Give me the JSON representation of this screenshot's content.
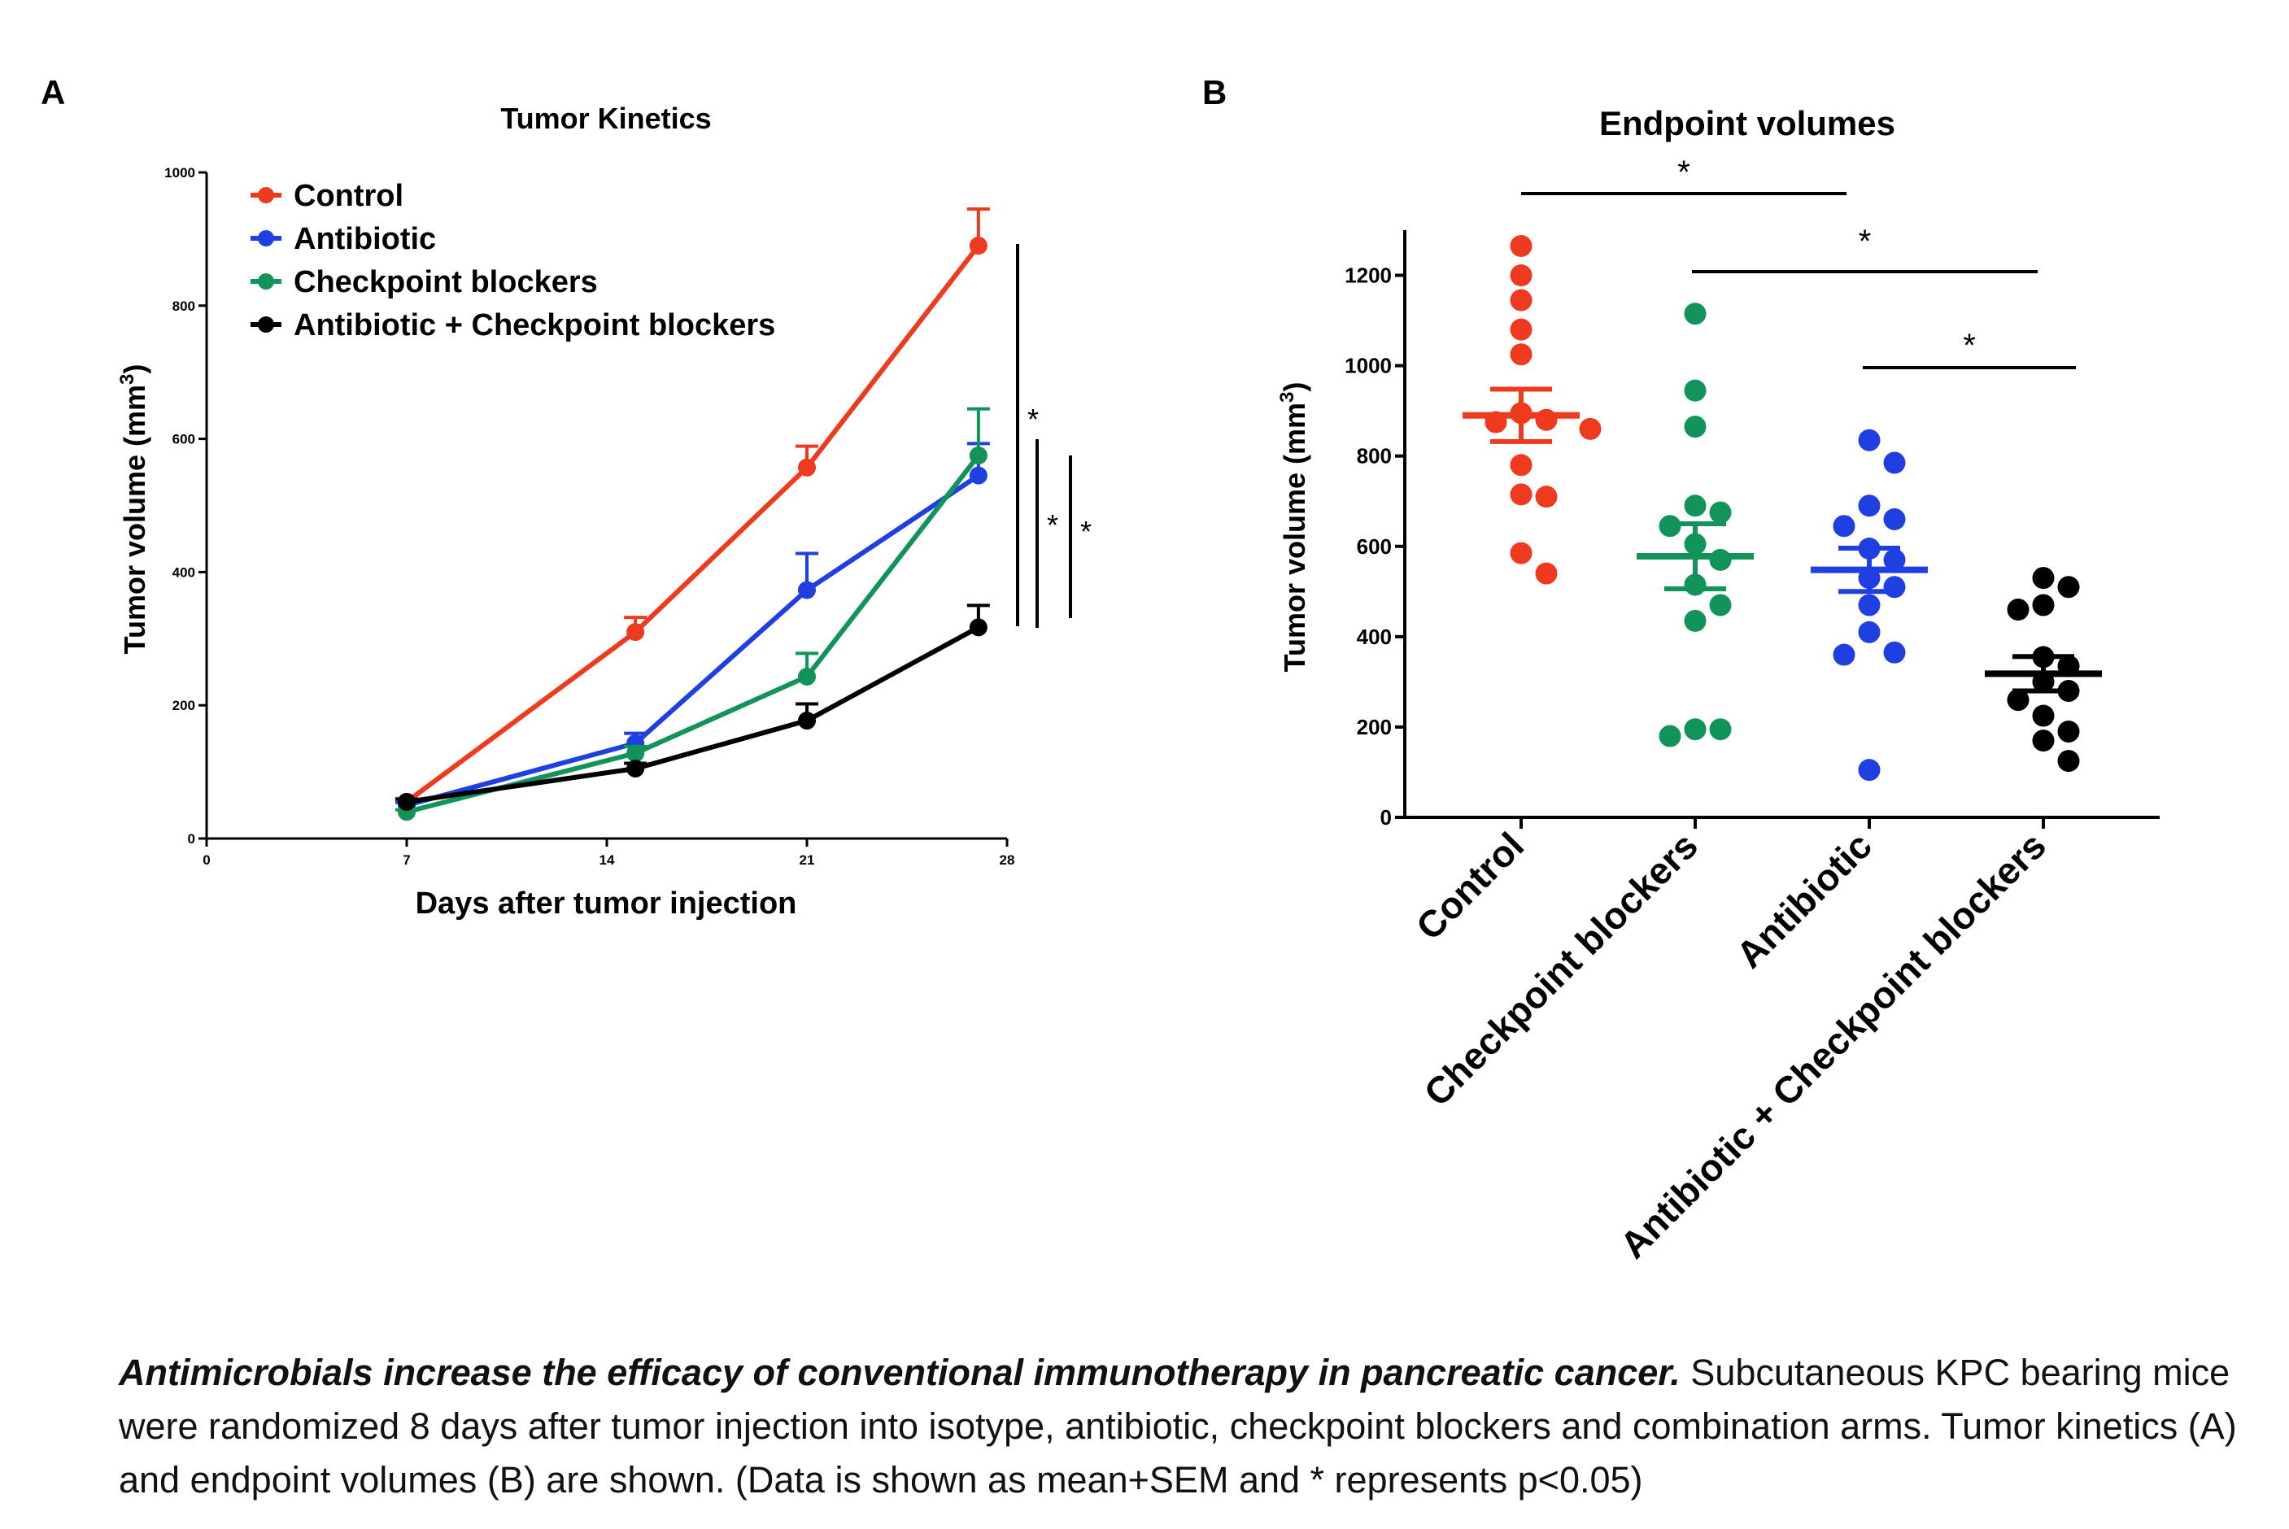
{
  "panels": {
    "a_letter": "A",
    "b_letter": "B"
  },
  "chart_data": [
    {
      "type": "line",
      "title": "Tumor Kinetics",
      "xlabel": "Days after tumor injection",
      "ylabel_main": "Tumor volume (mm",
      "ylabel_sup": "3",
      "ylabel_close": ")",
      "xlim": [
        0,
        28
      ],
      "ylim": [
        0,
        1000
      ],
      "xticks": [
        0,
        7,
        14,
        21,
        28
      ],
      "yticks": [
        0,
        200,
        400,
        600,
        800,
        1000
      ],
      "legend_position": "top-left",
      "grid": false,
      "series": [
        {
          "name": "Control",
          "color": "#ee3a1e",
          "x": [
            7,
            15,
            21,
            27
          ],
          "y": [
            55,
            310,
            557,
            890
          ],
          "sem": [
            5,
            22,
            32,
            55
          ]
        },
        {
          "name": "Antibiotic",
          "color": "#1f3fe0",
          "x": [
            7,
            15,
            21,
            27
          ],
          "y": [
            50,
            143,
            373,
            545
          ],
          "sem": [
            4,
            15,
            55,
            48
          ]
        },
        {
          "name": "Checkpoint blockers",
          "color": "#12935a",
          "x": [
            7,
            15,
            21,
            27
          ],
          "y": [
            40,
            128,
            243,
            575
          ],
          "sem": [
            3,
            10,
            35,
            70
          ]
        },
        {
          "name": "Antibiotic + Checkpoint blockers",
          "color": "#000000",
          "x": [
            7,
            15,
            21,
            27
          ],
          "y": [
            55,
            105,
            177,
            317
          ],
          "sem": [
            4,
            8,
            25,
            33
          ]
        }
      ],
      "significance": [
        "*",
        "*",
        "*"
      ]
    },
    {
      "type": "scatter",
      "title": "Endpoint volumes",
      "ylabel_main": "Tumor volume (mm",
      "ylabel_sup": "3",
      "ylabel_close": ")",
      "ylim": [
        0,
        1300
      ],
      "yticks": [
        0,
        200,
        400,
        600,
        800,
        1000,
        1200
      ],
      "grid": false,
      "categories": [
        "Control",
        "Checkpoint blockers",
        "Antibiotic",
        "Antibiotic + Checkpoint blockers"
      ],
      "series": [
        {
          "category": "Control",
          "color": "#ee3a1e",
          "mean": 890,
          "sem": 58,
          "points": [
            1265,
            1200,
            1145,
            1080,
            1025,
            895,
            880,
            875,
            860,
            780,
            715,
            710,
            585,
            540
          ]
        },
        {
          "category": "Checkpoint blockers",
          "color": "#12935a",
          "mean": 578,
          "sem": 72,
          "points": [
            1115,
            945,
            865,
            690,
            675,
            645,
            605,
            570,
            515,
            470,
            435,
            195,
            195,
            180
          ]
        },
        {
          "category": "Antibiotic",
          "color": "#1f3fe0",
          "mean": 548,
          "sem": 48,
          "points": [
            835,
            785,
            690,
            660,
            645,
            595,
            570,
            530,
            510,
            470,
            410,
            365,
            360,
            105
          ]
        },
        {
          "category": "Antibiotic + Checkpoint blockers",
          "color": "#000000",
          "mean": 318,
          "sem": 38,
          "points": [
            530,
            510,
            470,
            460,
            355,
            335,
            300,
            280,
            260,
            225,
            190,
            170,
            125
          ]
        }
      ],
      "significance": [
        "*",
        "*",
        "*"
      ]
    }
  ],
  "caption": {
    "lead": "Antimicrobials increase the efficacy of conventional immunotherapy in pancreatic cancer.",
    "body": " Subcutaneous KPC bearing mice were randomized 8 days after tumor injection into isotype, antibiotic, checkpoint blockers and combination arms. Tumor kinetics (A) and endpoint volumes (B) are shown.  (Data is shown as  mean+SEM and * represents p<0.05)"
  }
}
